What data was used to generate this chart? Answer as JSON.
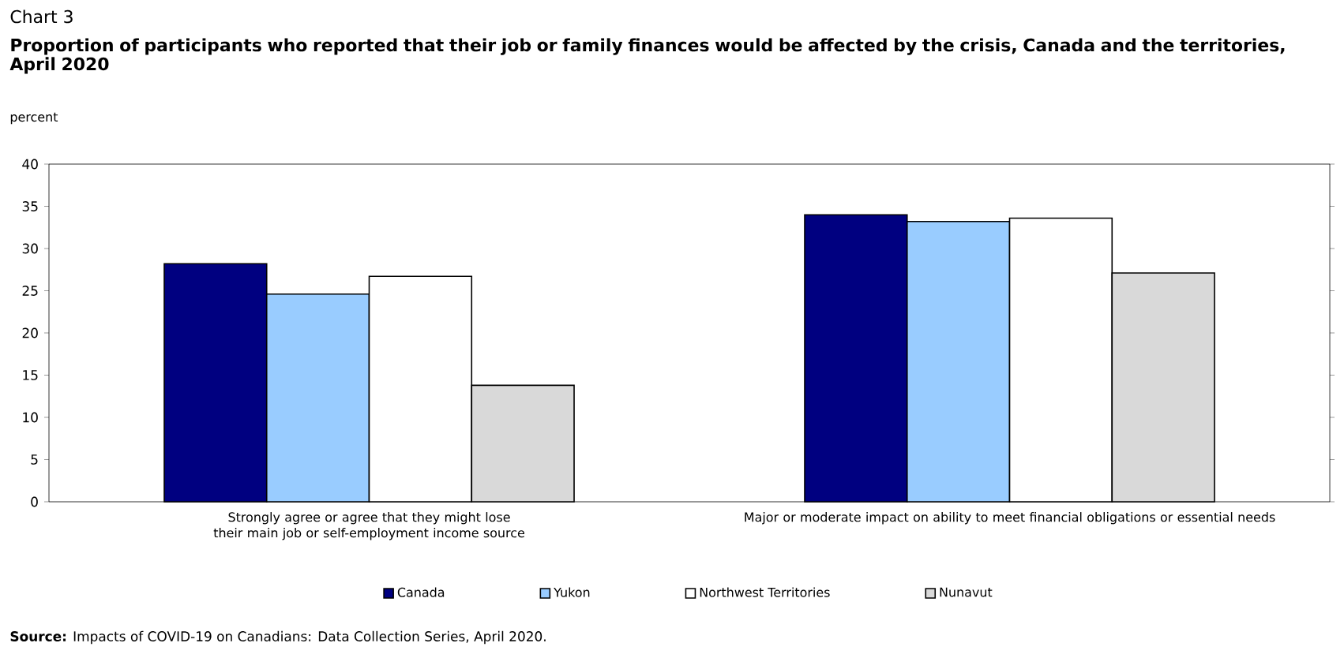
{
  "chart_data": {
    "type": "bar",
    "title": "Chart 3",
    "subtitle": "Proportion of participants who reported that their job or family finances would be affected by the crisis, Canada and the territories, April 2020",
    "ylabel": "percent",
    "categories": [
      "Strongly agree or agree that they might lose their main job or self-employment income source",
      "Major or moderate impact on ability to meet financial obligations or essential needs"
    ],
    "series": [
      {
        "name": "Canada",
        "color": "#000080",
        "values": [
          28.2,
          34.0
        ]
      },
      {
        "name": "Yukon",
        "color": "#99ccff",
        "values": [
          24.6,
          33.2
        ]
      },
      {
        "name": "Northwest Territories",
        "color": "#ffffff",
        "values": [
          26.7,
          33.6
        ]
      },
      {
        "name": "Nunavut",
        "color": "#d9d9d9",
        "values": [
          13.8,
          27.1
        ]
      }
    ],
    "ylim": [
      0,
      40
    ],
    "yticks": [
      0,
      5,
      10,
      15,
      20,
      25,
      30,
      35,
      40
    ],
    "legend": "bottom",
    "annotations": [
      "**Source:** Impacts of COVID-19 on Canadians: Data Collection Series, April 2020."
    ]
  }
}
